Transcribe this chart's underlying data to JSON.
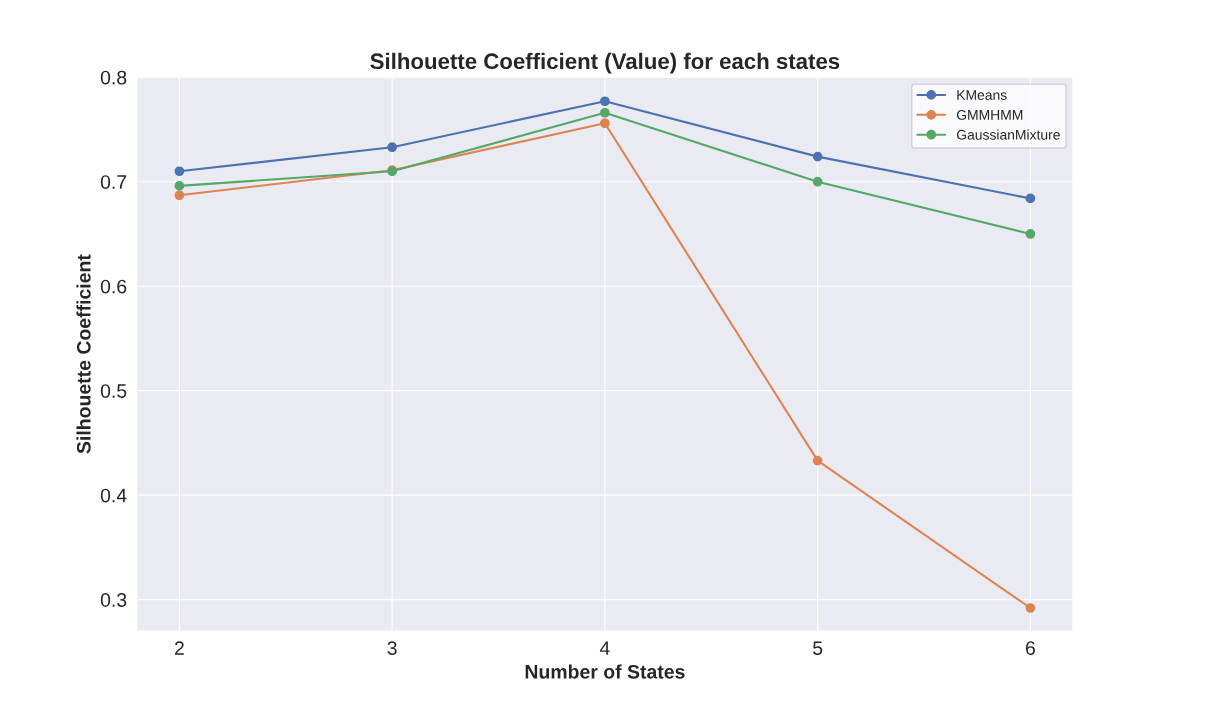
{
  "chart_data": {
    "type": "line",
    "title": "Silhouette Coefficient (Value) for each states",
    "xlabel": "Number of States",
    "ylabel": "Silhouette Coefficient",
    "x": [
      2,
      3,
      4,
      5,
      6
    ],
    "series": [
      {
        "name": "KMeans",
        "color": "#4c72b0",
        "values": [
          0.71,
          0.733,
          0.777,
          0.724,
          0.684
        ]
      },
      {
        "name": "GMMHMM",
        "color": "#dd8452",
        "values": [
          0.687,
          0.711,
          0.756,
          0.433,
          0.292
        ]
      },
      {
        "name": "GaussianMixture",
        "color": "#55a868",
        "values": [
          0.696,
          0.71,
          0.766,
          0.7,
          0.65
        ]
      }
    ],
    "xlim": [
      1.8,
      6.2
    ],
    "xticks": [
      2,
      3,
      4,
      5,
      6
    ],
    "ylim": [
      0.27,
      0.8
    ],
    "yticks": [
      0.3,
      0.4,
      0.5,
      0.6,
      0.7,
      0.8
    ],
    "grid": true,
    "legend": "top right",
    "marker": "circle",
    "line_style": "solid"
  }
}
